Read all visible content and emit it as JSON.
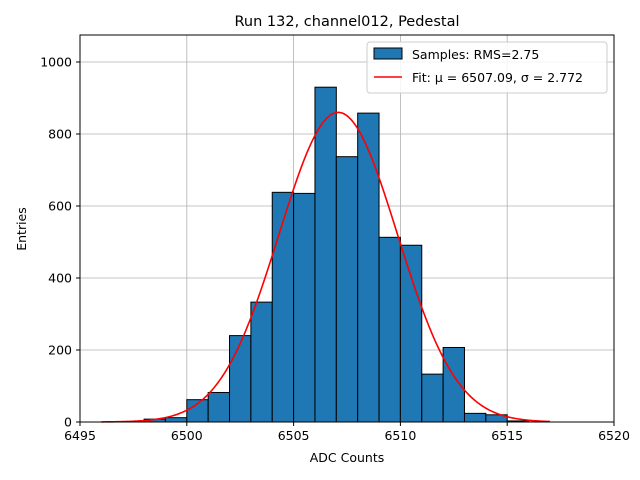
{
  "chart_data": {
    "type": "bar",
    "title": "Run 132, channel012, Pedestal",
    "xlabel": "ADC Counts",
    "ylabel": "Entries",
    "xlim": [
      6495,
      6520
    ],
    "ylim": [
      0,
      1075
    ],
    "xticks": [
      6495,
      6500,
      6505,
      6510,
      6515,
      6520
    ],
    "yticks": [
      0,
      200,
      400,
      600,
      800,
      1000
    ],
    "grid": true,
    "legend_position": "top-right",
    "histogram": {
      "name": "Samples: RMS=2.75",
      "color": "#1f77b4",
      "edge_color": "#000000",
      "bin_edges": [
        6498,
        6499,
        6500,
        6501,
        6502,
        6503,
        6504,
        6505,
        6506,
        6507,
        6508,
        6509,
        6510,
        6511,
        6512,
        6513,
        6514,
        6515,
        6516
      ],
      "counts": [
        8,
        12,
        62,
        82,
        240,
        333,
        638,
        635,
        930,
        737,
        858,
        513,
        491,
        133,
        207,
        24,
        20,
        3
      ]
    },
    "fit": {
      "name_prefix": "Fit: ",
      "name_math": "μ = 6507.09, σ = 2.772",
      "color": "#ff0000",
      "mu": 6507.09,
      "sigma": 2.772,
      "amplitude": 860,
      "x_range": [
        6496,
        6517
      ]
    }
  }
}
